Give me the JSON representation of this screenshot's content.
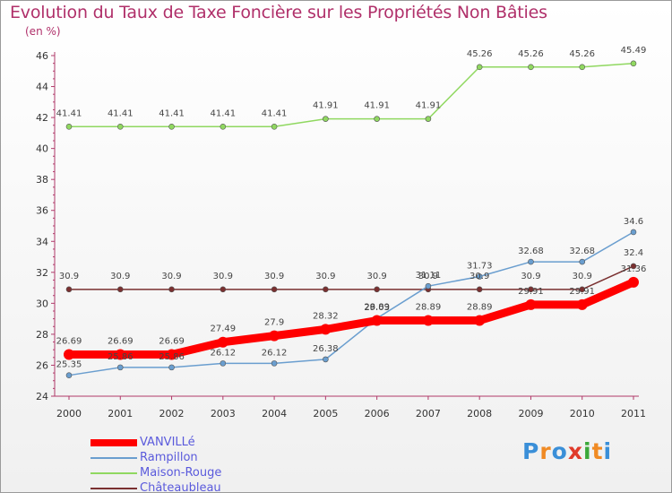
{
  "title": "Evolution du Taux de Taxe Foncière sur les Propriétés Non Bâties",
  "unit_label": "(en %)",
  "brand": {
    "text": "ProXiti",
    "letters": [
      "P",
      "r",
      "o",
      "x",
      "i",
      "t",
      "i"
    ],
    "colors": [
      "#3a8fd8",
      "#f08a24",
      "#3a8fd8",
      "#e03a2a",
      "#3aa83a",
      "#f08a24",
      "#3a8fd8"
    ]
  },
  "chart_data": {
    "type": "line",
    "title": "Evolution du Taux de Taxe Foncière sur les Propriétés Non Bâties",
    "xlabel": "",
    "ylabel": "(en %)",
    "ylim": [
      24,
      46
    ],
    "yticks": [
      24,
      26,
      28,
      30,
      32,
      34,
      36,
      38,
      40,
      42,
      44,
      46
    ],
    "x": [
      "2000",
      "2001",
      "2002",
      "2003",
      "2004",
      "2005",
      "2006",
      "2007",
      "2008",
      "2009",
      "2010",
      "2011"
    ],
    "grid": false,
    "legend_position": "bottom-left",
    "series": [
      {
        "name": "VANVILLé",
        "color": "#ff0000",
        "values": [
          26.69,
          26.69,
          26.69,
          27.49,
          27.9,
          28.32,
          28.89,
          28.89,
          28.89,
          29.91,
          29.91,
          31.36
        ],
        "labels": [
          "26.69",
          "26.69",
          "26.69",
          "27.49",
          "27.9",
          "28.32",
          "28.89",
          "28.89",
          "28.89",
          "29.91",
          "29.91",
          "31.36"
        ]
      },
      {
        "name": "Rampillon",
        "color": "#6a9ecf",
        "values": [
          25.35,
          25.86,
          25.86,
          26.12,
          26.12,
          26.38,
          29.03,
          31.11,
          31.73,
          32.68,
          32.68,
          34.6
        ],
        "labels": [
          "25.35",
          "25.86",
          "25.86",
          "26.12",
          "26.12",
          "26.38",
          "29.03",
          "31.11",
          "31.73",
          "32.68",
          "32.68",
          "34.6"
        ]
      },
      {
        "name": "Maison-Rouge",
        "color": "#90d860",
        "values": [
          41.41,
          41.41,
          41.41,
          41.41,
          41.41,
          41.91,
          41.91,
          41.91,
          45.26,
          45.26,
          45.26,
          45.49
        ],
        "labels": [
          "41.41",
          "41.41",
          "41.41",
          "41.41",
          "41.41",
          "41.91",
          "41.91",
          "41.91",
          "45.26",
          "45.26",
          "45.26",
          "45.49"
        ]
      },
      {
        "name": "Châteaubleau",
        "color": "#7a3030",
        "values": [
          30.9,
          30.9,
          30.9,
          30.9,
          30.9,
          30.9,
          30.9,
          30.9,
          30.9,
          30.9,
          30.9,
          32.4
        ],
        "labels": [
          "30.9",
          "30.9",
          "30.9",
          "30.9",
          "30.9",
          "30.9",
          "30.9",
          "30.9",
          "30.9",
          "30.9",
          "30.9",
          "32.4"
        ]
      }
    ]
  }
}
